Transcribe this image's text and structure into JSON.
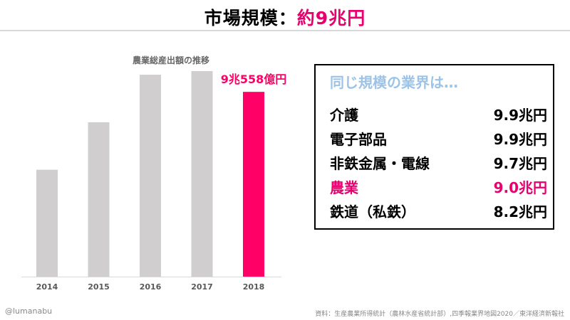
{
  "header": {
    "title_main": "市場規模：",
    "title_accent": "約9兆円",
    "accent_color": "#e8006e"
  },
  "chart_data": {
    "type": "bar",
    "title": "農業総産出額の推移",
    "categories": [
      "2014",
      "2015",
      "2016",
      "2017",
      "2018"
    ],
    "values": [
      8.4,
      8.8,
      9.2,
      9.3,
      9.0558
    ],
    "highlight_index": 4,
    "highlight_label": "9兆558億円",
    "bar_color": "#d0cece",
    "highlight_color": "#ff0066"
  },
  "comparison": {
    "heading": "同じ規模の業界は…",
    "heading_color": "#9dc3e6",
    "items": [
      {
        "label": "介護",
        "value": "9.9兆円",
        "highlight": false
      },
      {
        "label": "電子部品",
        "value": "9.9兆円",
        "highlight": false
      },
      {
        "label": "非鉄金属・電線",
        "value": "9.7兆円",
        "highlight": false
      },
      {
        "label": "農業",
        "value": "9.0兆円",
        "highlight": true
      },
      {
        "label": "鉄道（私鉄）",
        "value": "8.2兆円",
        "highlight": false
      }
    ]
  },
  "footer": {
    "credit": "@lumanabu",
    "source": "資料：生産農業所得統計（農林水産省統計部）,四季報業界地図2020／東洋経済新報社"
  }
}
